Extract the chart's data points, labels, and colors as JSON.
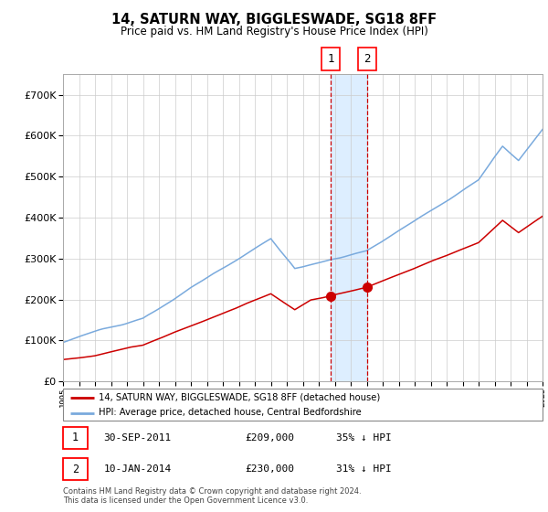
{
  "title": "14, SATURN WAY, BIGGLESWADE, SG18 8FF",
  "subtitle": "Price paid vs. HM Land Registry's House Price Index (HPI)",
  "legend_line1": "14, SATURN WAY, BIGGLESWADE, SG18 8FF (detached house)",
  "legend_line2": "HPI: Average price, detached house, Central Bedfordshire",
  "annotation1_date": "30-SEP-2011",
  "annotation1_price": "£209,000",
  "annotation1_hpi": "35% ↓ HPI",
  "annotation2_date": "10-JAN-2014",
  "annotation2_price": "£230,000",
  "annotation2_hpi": "31% ↓ HPI",
  "footer1": "Contains HM Land Registry data © Crown copyright and database right 2024.",
  "footer2": "This data is licensed under the Open Government Licence v3.0.",
  "sale1_year": 2011.75,
  "sale1_value": 209000,
  "sale2_year": 2014.03,
  "sale2_value": 230000,
  "hpi_color": "#7aaadd",
  "price_color": "#cc0000",
  "shade_color": "#ddeeff",
  "vline_color": "#cc0000",
  "grid_color": "#cccccc",
  "bg_color": "#ffffff",
  "ylim_max": 750000,
  "ylim_min": 0,
  "xmin": 1995,
  "xmax": 2025
}
